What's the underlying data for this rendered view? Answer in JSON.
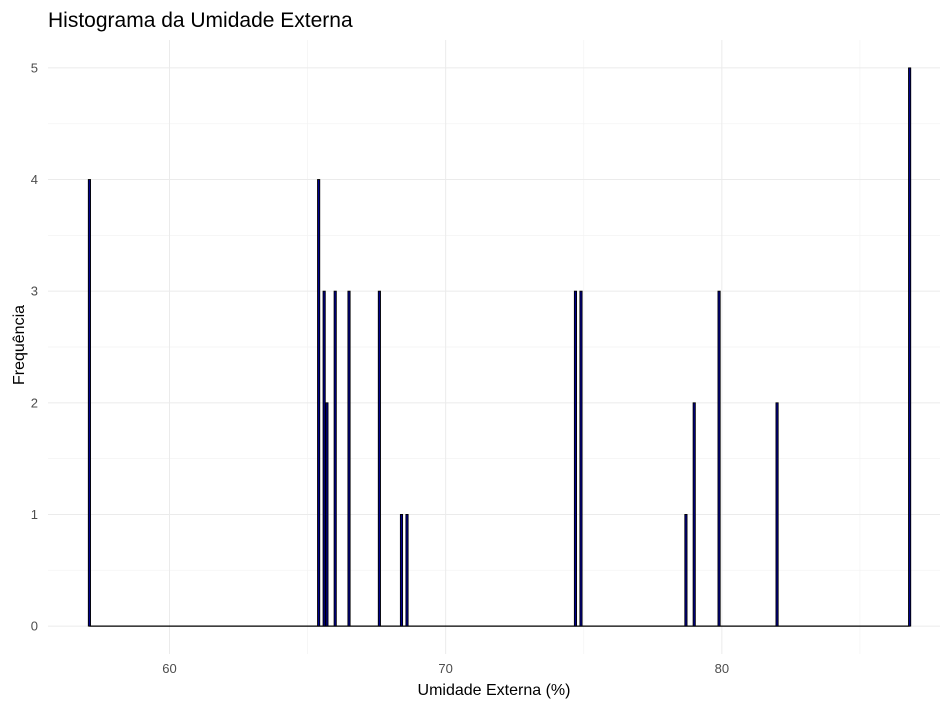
{
  "chart_data": {
    "type": "bar",
    "title": "Histograma da Umidade Externa",
    "xlabel": "Umidade Externa (%)",
    "ylabel": "Frequência",
    "xlim": [
      55.6,
      87.9
    ],
    "ylim": [
      -0.25,
      5.25
    ],
    "x_ticks": [
      60,
      70,
      80
    ],
    "y_ticks": [
      0,
      1,
      2,
      3,
      4,
      5
    ],
    "grid": true,
    "legend": "none",
    "bar_fill": "#00008b",
    "bar_outline": "#000000",
    "bins": [
      {
        "x": 57.1,
        "count": 4
      },
      {
        "x": 65.4,
        "count": 4
      },
      {
        "x": 65.6,
        "count": 3
      },
      {
        "x": 65.7,
        "count": 2
      },
      {
        "x": 66.0,
        "count": 3
      },
      {
        "x": 66.5,
        "count": 3
      },
      {
        "x": 67.6,
        "count": 3
      },
      {
        "x": 68.4,
        "count": 1
      },
      {
        "x": 68.6,
        "count": 1
      },
      {
        "x": 74.7,
        "count": 3
      },
      {
        "x": 74.9,
        "count": 3
      },
      {
        "x": 78.7,
        "count": 1
      },
      {
        "x": 79.0,
        "count": 2
      },
      {
        "x": 79.9,
        "count": 3
      },
      {
        "x": 82.0,
        "count": 2
      },
      {
        "x": 86.8,
        "count": 5
      }
    ]
  }
}
